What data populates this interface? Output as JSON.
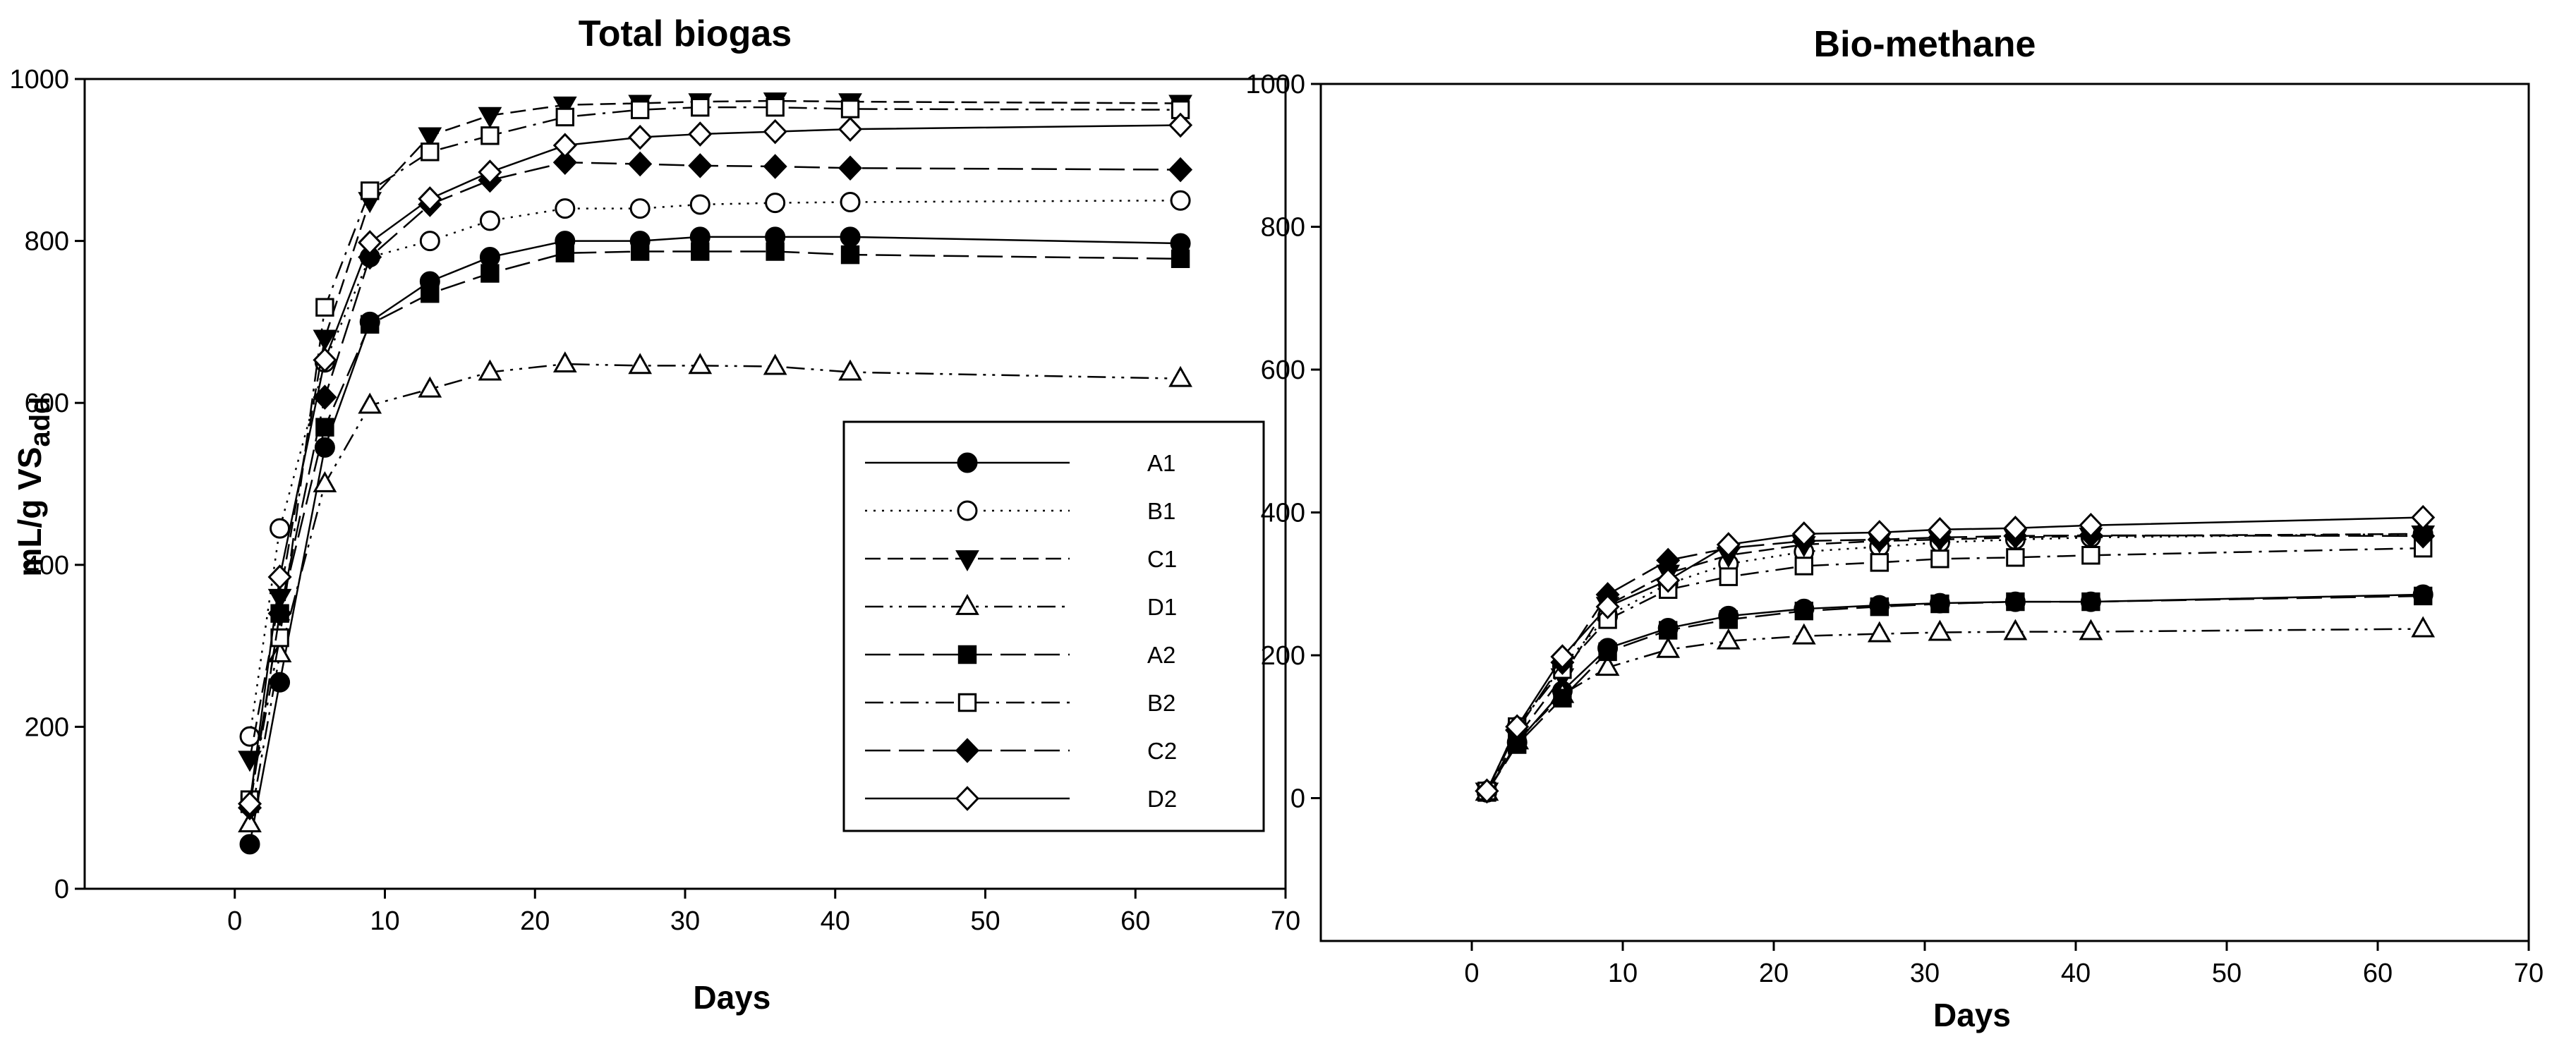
{
  "chart_data": [
    {
      "type": "line",
      "title": "Total biogas",
      "xlabel": "Days",
      "ylabel": "mL/g VS",
      "ylabel_sub": "add",
      "xlim": [
        -10,
        70
      ],
      "ylim": [
        0,
        1000
      ],
      "xticks": [
        0,
        10,
        20,
        30,
        40,
        50,
        60,
        70
      ],
      "yticks": [
        0,
        200,
        400,
        600,
        800,
        1000
      ],
      "legend_position": "bottom-right",
      "grid": false,
      "x": [
        1,
        3,
        6,
        9,
        13,
        17,
        22,
        27,
        31,
        36,
        41,
        63
      ],
      "series": [
        {
          "name": "A1",
          "marker": "circle",
          "fill": "filled",
          "dash": "solid",
          "values": [
            55,
            255,
            545,
            700,
            750,
            780,
            800,
            800,
            805,
            805,
            805,
            797
          ]
        },
        {
          "name": "B1",
          "marker": "circle",
          "fill": "open",
          "dash": "dotted",
          "values": [
            188,
            445,
            650,
            780,
            800,
            825,
            840,
            840,
            845,
            847,
            848,
            850
          ]
        },
        {
          "name": "C1",
          "marker": "triangle-down",
          "fill": "filled",
          "dash": "dashed",
          "values": [
            160,
            360,
            680,
            850,
            930,
            955,
            968,
            970,
            972,
            973,
            972,
            970
          ]
        },
        {
          "name": "D1",
          "marker": "triangle-up",
          "fill": "open",
          "dash": "dash-dot-dot",
          "values": [
            80,
            290,
            500,
            597,
            617,
            638,
            648,
            646,
            646,
            645,
            638,
            630
          ]
        },
        {
          "name": "A2",
          "marker": "square",
          "fill": "filled",
          "dash": "long-dash",
          "values": [
            105,
            340,
            570,
            697,
            735,
            760,
            785,
            787,
            787,
            787,
            783,
            778
          ]
        },
        {
          "name": "B2",
          "marker": "square",
          "fill": "open",
          "dash": "dash-dot",
          "values": [
            110,
            310,
            718,
            862,
            910,
            930,
            953,
            962,
            965,
            965,
            963,
            962
          ]
        },
        {
          "name": "C2",
          "marker": "diamond",
          "fill": "filled",
          "dash": "long-dash",
          "values": [
            100,
            340,
            607,
            780,
            845,
            875,
            897,
            895,
            893,
            892,
            890,
            888
          ]
        },
        {
          "name": "D2",
          "marker": "diamond",
          "fill": "open",
          "dash": "solid",
          "values": [
            105,
            385,
            653,
            798,
            852,
            885,
            918,
            928,
            932,
            935,
            938,
            943
          ]
        }
      ]
    },
    {
      "type": "line",
      "title": "Bio-methane",
      "xlabel": "Days",
      "ylabel": "",
      "xlim": [
        -10,
        70
      ],
      "ylim": [
        -200,
        1000
      ],
      "xticks": [
        0,
        10,
        20,
        30,
        40,
        50,
        60,
        70
      ],
      "yticks": [
        0,
        200,
        400,
        600,
        800,
        1000
      ],
      "grid": false,
      "x": [
        1,
        3,
        6,
        9,
        13,
        17,
        22,
        27,
        31,
        36,
        41,
        63
      ],
      "series": [
        {
          "name": "A1",
          "marker": "circle",
          "fill": "filled",
          "dash": "solid",
          "values": [
            8,
            78,
            150,
            210,
            238,
            255,
            265,
            270,
            273,
            275,
            275,
            285
          ]
        },
        {
          "name": "B1",
          "marker": "circle",
          "fill": "open",
          "dash": "dotted",
          "values": [
            10,
            100,
            185,
            255,
            300,
            328,
            345,
            352,
            358,
            362,
            365,
            370
          ]
        },
        {
          "name": "C1",
          "marker": "triangle-down",
          "fill": "filled",
          "dash": "dashed",
          "values": [
            10,
            85,
            170,
            270,
            315,
            340,
            355,
            360,
            362,
            365,
            367,
            370
          ]
        },
        {
          "name": "D1",
          "marker": "triangle-up",
          "fill": "open",
          "dash": "dash-dot-dot",
          "values": [
            8,
            80,
            145,
            183,
            208,
            220,
            227,
            230,
            232,
            233,
            233,
            237
          ]
        },
        {
          "name": "A2",
          "marker": "square",
          "fill": "filled",
          "dash": "long-dash",
          "values": [
            8,
            75,
            140,
            205,
            235,
            250,
            262,
            268,
            272,
            275,
            275,
            283
          ]
        },
        {
          "name": "B2",
          "marker": "square",
          "fill": "open",
          "dash": "dash-dot",
          "values": [
            10,
            100,
            180,
            250,
            292,
            310,
            325,
            330,
            335,
            337,
            340,
            350
          ]
        },
        {
          "name": "C2",
          "marker": "diamond",
          "fill": "filled",
          "dash": "long-dash",
          "values": [
            10,
            95,
            190,
            285,
            333,
            350,
            360,
            362,
            365,
            367,
            368,
            367
          ]
        },
        {
          "name": "D2",
          "marker": "diamond",
          "fill": "open",
          "dash": "solid",
          "values": [
            10,
            100,
            198,
            268,
            305,
            355,
            370,
            372,
            376,
            378,
            382,
            393
          ]
        }
      ]
    }
  ]
}
